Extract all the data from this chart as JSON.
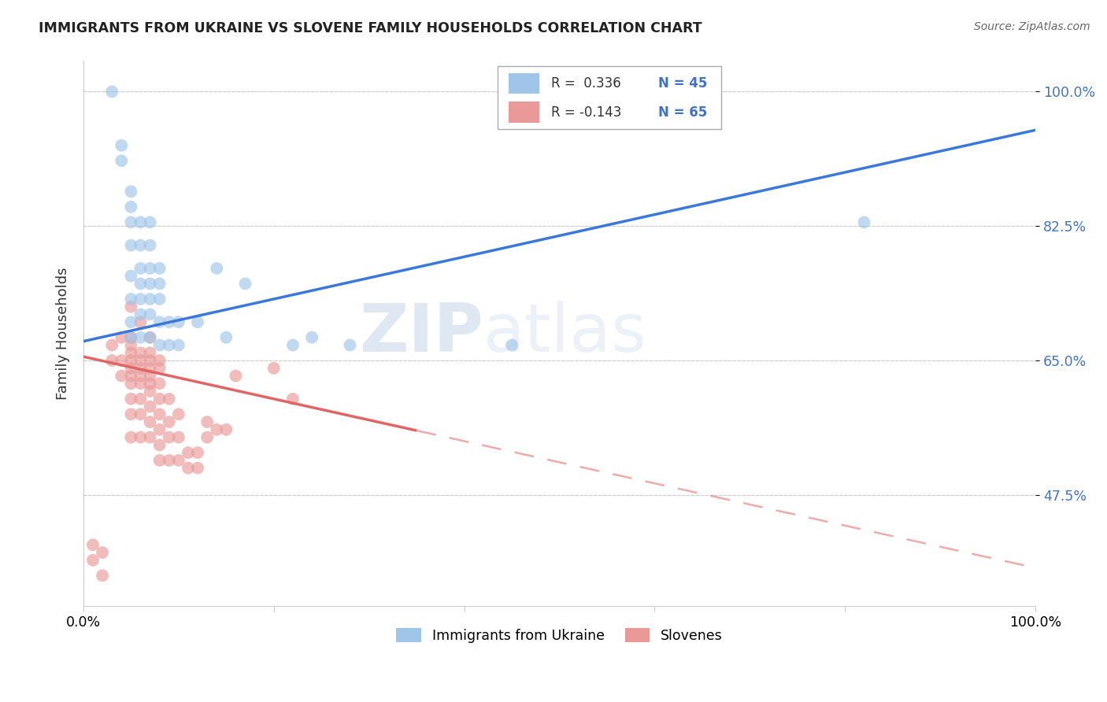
{
  "title": "IMMIGRANTS FROM UKRAINE VS SLOVENE FAMILY HOUSEHOLDS CORRELATION CHART",
  "source": "Source: ZipAtlas.com",
  "ylabel": "Family Households",
  "yticks": [
    47.5,
    65.0,
    82.5,
    100.0
  ],
  "ytick_labels": [
    "47.5%",
    "65.0%",
    "82.5%",
    "100.0%"
  ],
  "xmin": 0.0,
  "xmax": 100.0,
  "ymin": 33.0,
  "ymax": 104.0,
  "legend_blue_label": "Immigrants from Ukraine",
  "legend_pink_label": "Slovenes",
  "blue_color": "#9fc5e8",
  "pink_color": "#ea9999",
  "blue_line_color": "#3c78d8",
  "pink_line_color": "#e06666",
  "watermark_zip": "ZIP",
  "watermark_atlas": "atlas",
  "background_color": "#ffffff",
  "grid_color": "#cccccc",
  "blue_scatter_x": [
    3,
    4,
    4,
    5,
    5,
    5,
    5,
    5,
    5,
    5,
    5,
    6,
    6,
    6,
    6,
    6,
    6,
    6,
    7,
    7,
    7,
    7,
    7,
    7,
    7,
    8,
    8,
    8,
    8,
    8,
    9,
    9,
    10,
    10,
    12,
    14,
    15,
    17,
    22,
    24,
    28,
    45,
    82
  ],
  "blue_scatter_y": [
    100,
    91,
    93,
    68,
    70,
    73,
    76,
    80,
    83,
    85,
    87,
    68,
    71,
    73,
    75,
    77,
    80,
    83,
    68,
    71,
    73,
    75,
    77,
    80,
    83,
    67,
    70,
    73,
    75,
    77,
    67,
    70,
    67,
    70,
    70,
    77,
    68,
    75,
    67,
    68,
    67,
    67,
    83
  ],
  "pink_scatter_x": [
    1,
    1,
    2,
    2,
    3,
    3,
    4,
    4,
    4,
    5,
    5,
    5,
    5,
    5,
    5,
    5,
    5,
    5,
    5,
    5,
    6,
    6,
    6,
    6,
    6,
    6,
    6,
    6,
    6,
    7,
    7,
    7,
    7,
    7,
    7,
    7,
    7,
    7,
    7,
    8,
    8,
    8,
    8,
    8,
    8,
    8,
    8,
    9,
    9,
    9,
    9,
    10,
    10,
    10,
    11,
    11,
    12,
    12,
    13,
    13,
    14,
    15,
    16,
    20,
    22
  ],
  "pink_scatter_y": [
    39,
    41,
    37,
    40,
    65,
    67,
    63,
    65,
    68,
    55,
    58,
    60,
    62,
    63,
    64,
    65,
    66,
    67,
    68,
    72,
    55,
    58,
    60,
    62,
    63,
    64,
    65,
    66,
    70,
    55,
    57,
    59,
    61,
    62,
    63,
    64,
    65,
    66,
    68,
    52,
    54,
    56,
    58,
    60,
    62,
    64,
    65,
    52,
    55,
    57,
    60,
    52,
    55,
    58,
    51,
    53,
    51,
    53,
    55,
    57,
    56,
    56,
    63,
    64,
    60
  ],
  "blue_trend_x0": 0,
  "blue_trend_y0": 67.5,
  "blue_trend_x1": 100,
  "blue_trend_y1": 95.0,
  "pink_trend_x0": 0,
  "pink_trend_y0": 65.5,
  "pink_trend_x1": 100,
  "pink_trend_y1": 38.0,
  "pink_solid_end_x": 35
}
